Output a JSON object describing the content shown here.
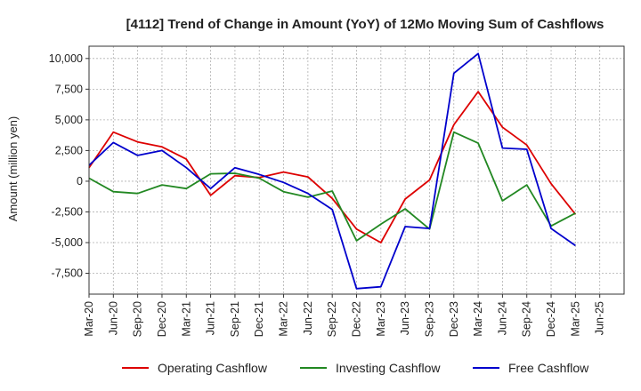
{
  "chart_data": {
    "type": "line",
    "title": "[4112]  Trend of Change in Amount (YoY) of 12Mo Moving Sum of Cashflows",
    "xlabel": "",
    "ylabel": "Amount (million yen)",
    "ylim": [
      -9200,
      11000
    ],
    "yticks": [
      -7500,
      -5000,
      -2500,
      0,
      2500,
      5000,
      7500,
      10000
    ],
    "ytick_labels": [
      "-7,500",
      "-5,000",
      "-2,500",
      "0",
      "2,500",
      "5,000",
      "7,500",
      "10,000"
    ],
    "grid": true,
    "legend_position": "bottom",
    "categories": [
      "Mar-20",
      "Jun-20",
      "Sep-20",
      "Dec-20",
      "Mar-21",
      "Jun-21",
      "Sep-21",
      "Dec-21",
      "Mar-22",
      "Jun-22",
      "Sep-22",
      "Dec-22",
      "Mar-23",
      "Jun-23",
      "Sep-23",
      "Dec-23",
      "Mar-24",
      "Jun-24",
      "Sep-24",
      "Dec-24",
      "Mar-25",
      "Jun-25"
    ],
    "series": [
      {
        "name": "Operating Cashflow",
        "color": "#dd0000",
        "values": [
          1100,
          4000,
          3200,
          2800,
          1800,
          -1150,
          450,
          300,
          750,
          350,
          -1400,
          -3900,
          -5000,
          -1450,
          100,
          4600,
          7300,
          4400,
          2950,
          -200,
          -2700,
          null
        ]
      },
      {
        "name": "Investing Cashflow",
        "color": "#228822",
        "values": [
          250,
          -850,
          -1000,
          -300,
          -600,
          600,
          650,
          250,
          -850,
          -1300,
          -800,
          -4850,
          -3500,
          -2250,
          -3900,
          4000,
          3100,
          -1600,
          -300,
          -3650,
          -2600,
          null
        ]
      },
      {
        "name": "Free Cashflow",
        "color": "#0000cc",
        "values": [
          1300,
          3150,
          2100,
          2500,
          1100,
          -600,
          1100,
          550,
          -100,
          -1000,
          -2300,
          -8750,
          -8600,
          -3700,
          -3850,
          8800,
          10400,
          2700,
          2600,
          -3850,
          -5250,
          null
        ]
      }
    ]
  }
}
